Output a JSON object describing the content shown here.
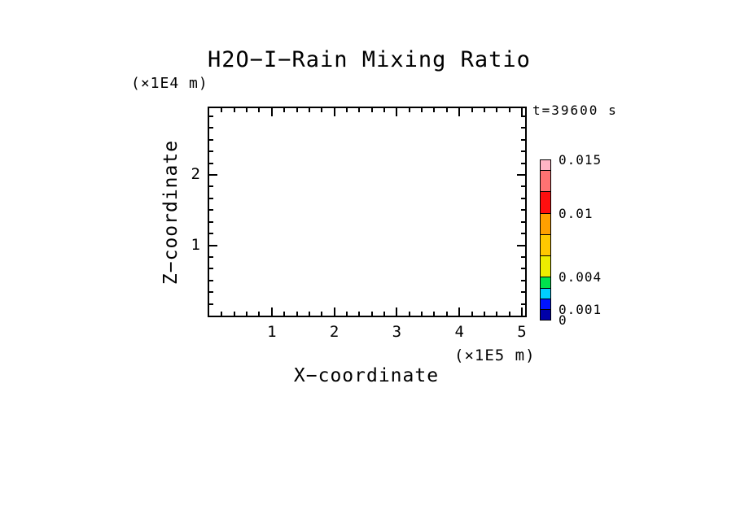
{
  "figure": {
    "background": "#ffffff",
    "frame_color": "#000000"
  },
  "chart_data": {
    "type": "heatmap",
    "title": "H2O−I−Rain Mixing Ratio",
    "time_annotation": "t=39600 s",
    "xlabel": "X−coordinate",
    "ylabel": "Z−coordinate",
    "x_unit_label": "(×1E5 m)",
    "y_unit_label": "(×1E4 m)",
    "xlim": [
      0,
      5.05
    ],
    "ylim": [
      0,
      2.95
    ],
    "x_major_ticks": [
      1,
      2,
      3,
      4,
      5
    ],
    "x_minor_step": 0.2,
    "y_major_ticks": [
      1,
      2
    ],
    "y_minor_step": 0.1667,
    "grid": false,
    "values": [],
    "colorbar": {
      "orientation": "vertical",
      "min": 0,
      "max": 0.015,
      "levels": [
        0,
        0.001,
        0.002,
        0.003,
        0.004,
        0.006,
        0.008,
        0.01,
        0.012,
        0.014,
        0.015
      ],
      "colors_bottom_to_top": [
        "#0000A8",
        "#0014FF",
        "#00CFFF",
        "#00E34E",
        "#EDED00",
        "#FFC800",
        "#FFA000",
        "#FF0F0F",
        "#FF7272",
        "#FFB5C5"
      ],
      "labeled_levels": [
        {
          "value": 0.015,
          "label": "0.015"
        },
        {
          "value": 0.01,
          "label": "0.01"
        },
        {
          "value": 0.004,
          "label": "0.004"
        },
        {
          "value": 0.001,
          "label": "0.001"
        },
        {
          "value": 0,
          "label": "0"
        }
      ]
    }
  }
}
